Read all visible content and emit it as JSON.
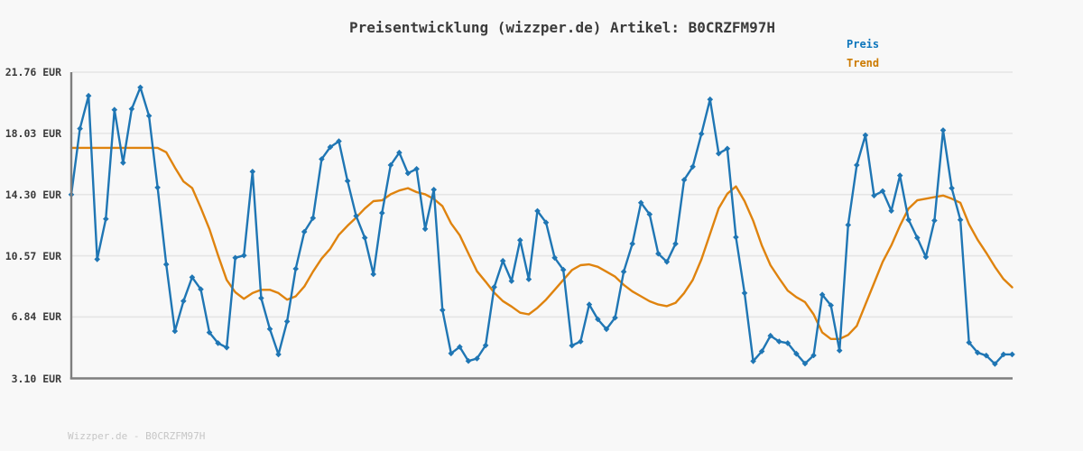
{
  "title": "Preisentwicklung (wizzper.de) Artikel: B0CRZFM97H",
  "legend": {
    "preis_label": "Preis",
    "trend_label": "Trend"
  },
  "footer_watermark": "Wizzper.de - B0CRZFM97H",
  "colors": {
    "preis_line": "#1f76b4",
    "trend_line": "#df830e",
    "legend_preis_text": "#0d76bc",
    "legend_trend_text": "#cc7a00",
    "grid": "#e5e5e5",
    "spine": "#7e7e7e",
    "background": "#f8f8f8",
    "title_text": "#3b3b3b",
    "watermark_text": "#c6c6c6"
  },
  "chart_data": {
    "type": "line",
    "title": "Preisentwicklung (wizzper.de) Artikel: B0CRZFM97H",
    "xlabel": "",
    "ylabel": "",
    "unit": "EUR",
    "ylim": [
      3.1,
      21.76
    ],
    "yticks": [
      21.76,
      18.03,
      14.3,
      10.57,
      6.84,
      3.1
    ],
    "ytick_labels": [
      "21.76 EUR",
      "18.03 EUR",
      "14.30 EUR",
      "10.57 EUR",
      "6.84 EUR",
      "3.10 EUR"
    ],
    "xtick_labels": [],
    "grid": "horizontal",
    "legend_position": "top-right",
    "series": [
      {
        "name": "Preis",
        "marker": "diamond",
        "values": [
          14.3,
          18.32,
          20.32,
          10.36,
          12.82,
          19.47,
          16.24,
          19.52,
          20.83,
          19.1,
          14.73,
          10.05,
          5.98,
          7.81,
          9.26,
          8.53,
          5.9,
          5.25,
          4.98,
          10.45,
          10.59,
          15.7,
          7.99,
          6.11,
          4.56,
          6.57,
          9.78,
          12.03,
          12.87,
          16.46,
          17.19,
          17.55,
          15.13,
          13.0,
          11.67,
          9.45,
          13.18,
          16.1,
          16.86,
          15.6,
          15.86,
          12.21,
          14.6,
          7.26,
          4.62,
          5.02,
          4.16,
          4.31,
          5.11,
          8.66,
          10.26,
          9.03,
          11.52,
          9.14,
          13.3,
          12.6,
          10.45,
          9.72,
          5.1,
          5.35,
          7.6,
          6.7,
          6.1,
          6.8,
          9.6,
          11.3,
          13.8,
          13.1,
          10.7,
          10.2,
          11.3,
          15.2,
          16.0,
          18.0,
          20.1,
          16.8,
          17.1,
          11.7,
          8.3,
          4.15,
          4.75,
          5.7,
          5.35,
          5.25,
          4.6,
          4.0,
          4.5,
          8.2,
          7.55,
          4.8,
          12.45,
          16.1,
          17.92,
          14.24,
          14.51,
          13.31,
          15.46,
          12.76,
          11.67,
          10.5,
          12.72,
          18.22,
          14.69,
          12.76,
          5.29,
          4.67,
          4.49,
          3.98,
          4.56,
          4.56
        ]
      },
      {
        "name": "Trend",
        "marker": "none",
        "values": [
          17.15,
          17.15,
          17.15,
          17.15,
          17.15,
          17.15,
          17.15,
          17.15,
          17.15,
          17.15,
          17.15,
          16.88,
          15.95,
          15.1,
          14.7,
          13.5,
          12.2,
          10.6,
          9.1,
          8.35,
          7.95,
          8.3,
          8.5,
          8.5,
          8.3,
          7.9,
          8.1,
          8.7,
          9.6,
          10.4,
          11.0,
          11.85,
          12.4,
          12.9,
          13.45,
          13.9,
          13.95,
          14.32,
          14.55,
          14.69,
          14.45,
          14.32,
          14.03,
          13.59,
          12.54,
          11.82,
          10.72,
          9.63,
          8.99,
          8.32,
          7.81,
          7.48,
          7.1,
          7.0,
          7.4,
          7.9,
          8.5,
          9.1,
          9.7,
          10.0,
          10.05,
          9.9,
          9.6,
          9.3,
          8.8,
          8.4,
          8.1,
          7.8,
          7.6,
          7.5,
          7.7,
          8.3,
          9.1,
          10.35,
          11.9,
          13.46,
          14.35,
          14.8,
          13.9,
          12.7,
          11.2,
          10.0,
          9.2,
          8.45,
          8.05,
          7.75,
          7.0,
          5.9,
          5.5,
          5.5,
          5.75,
          6.3,
          7.6,
          8.9,
          10.2,
          11.2,
          12.4,
          13.45,
          13.95,
          14.05,
          14.15,
          14.24,
          14.05,
          13.8,
          12.5,
          11.55,
          10.75,
          9.9,
          9.15,
          8.65
        ]
      }
    ]
  }
}
